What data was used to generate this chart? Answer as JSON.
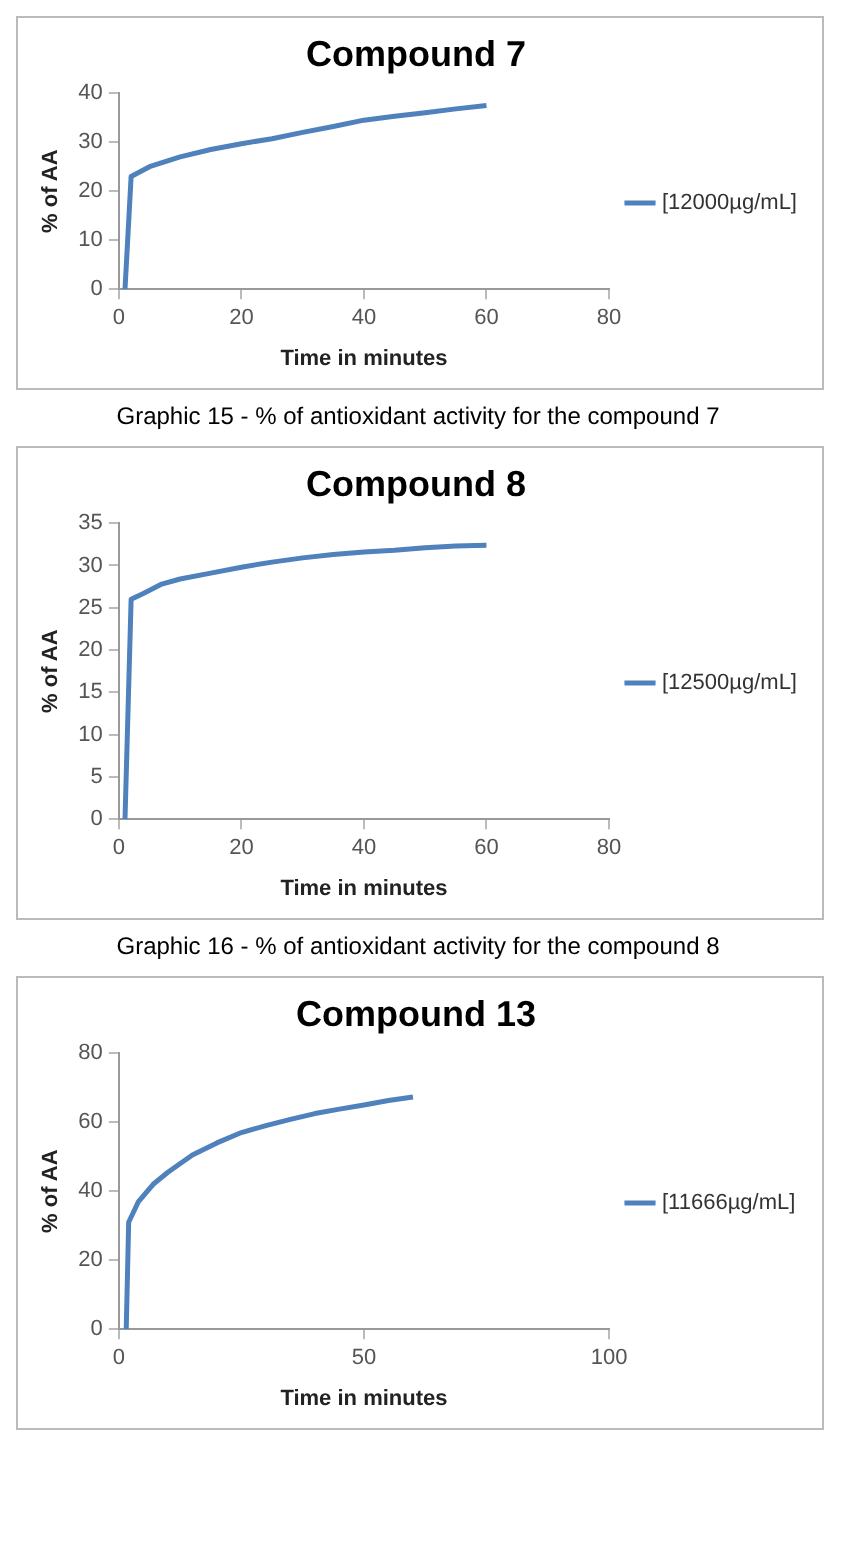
{
  "chart_data": [
    {
      "type": "line",
      "title": "Compound 7",
      "xlabel": "Time in minutes",
      "ylabel": "% of AA",
      "xlim": [
        0,
        80
      ],
      "xticks": [
        0,
        20,
        40,
        60,
        80
      ],
      "ylim": [
        0,
        40
      ],
      "yticks": [
        0,
        10,
        20,
        30,
        40
      ],
      "grid": false,
      "legend": "right",
      "marker": "none",
      "line_style": "solid",
      "annotations": [
        "Graphic 15 - % of antioxidant activity for the compound 7"
      ],
      "series": [
        {
          "name": "[12000µg/mL]",
          "color": "#4f81bd",
          "x": [
            1,
            2,
            5,
            10,
            15,
            20,
            25,
            30,
            35,
            40,
            45,
            50,
            55,
            60
          ],
          "values": [
            0,
            23,
            25,
            27,
            28.5,
            29.7,
            30.7,
            32,
            33.2,
            34.5,
            35.3,
            36,
            36.8,
            37.5
          ]
        }
      ]
    },
    {
      "type": "line",
      "title": "Compound 8",
      "xlabel": "Time in minutes",
      "ylabel": "% of AA",
      "xlim": [
        0,
        80
      ],
      "xticks": [
        0,
        20,
        40,
        60,
        80
      ],
      "ylim": [
        0,
        35
      ],
      "yticks": [
        0,
        5,
        10,
        15,
        20,
        25,
        30,
        35
      ],
      "grid": false,
      "legend": "right",
      "marker": "none",
      "line_style": "solid",
      "annotations": [
        "Graphic 16 - % of antioxidant activity for the compound 8"
      ],
      "series": [
        {
          "name": "[12500µg/mL]",
          "color": "#4f81bd",
          "x": [
            1,
            2,
            4,
            7,
            10,
            15,
            20,
            25,
            30,
            35,
            40,
            45,
            50,
            55,
            60
          ],
          "values": [
            0,
            26,
            26.7,
            27.8,
            28.4,
            29.1,
            29.8,
            30.4,
            30.9,
            31.3,
            31.6,
            31.8,
            32.1,
            32.3,
            32.4
          ]
        }
      ]
    },
    {
      "type": "line",
      "title": "Compound 13",
      "xlabel": "Time in minutes",
      "ylabel": "% of AA",
      "xlim": [
        0,
        100
      ],
      "xticks": [
        0,
        50,
        100
      ],
      "ylim": [
        0,
        80
      ],
      "yticks": [
        0,
        20,
        40,
        60,
        80
      ],
      "grid": false,
      "legend": "right",
      "marker": "none",
      "line_style": "solid",
      "series": [
        {
          "name": "[11666µg/mL]",
          "color": "#4f81bd",
          "x": [
            1.5,
            2,
            4,
            7,
            10,
            15,
            20,
            25,
            30,
            35,
            40,
            45,
            50,
            55,
            60
          ],
          "values": [
            0,
            31,
            37,
            42,
            45.5,
            50.5,
            54,
            57,
            59,
            60.8,
            62.5,
            63.8,
            65,
            66.3,
            67.3
          ]
        }
      ]
    }
  ]
}
